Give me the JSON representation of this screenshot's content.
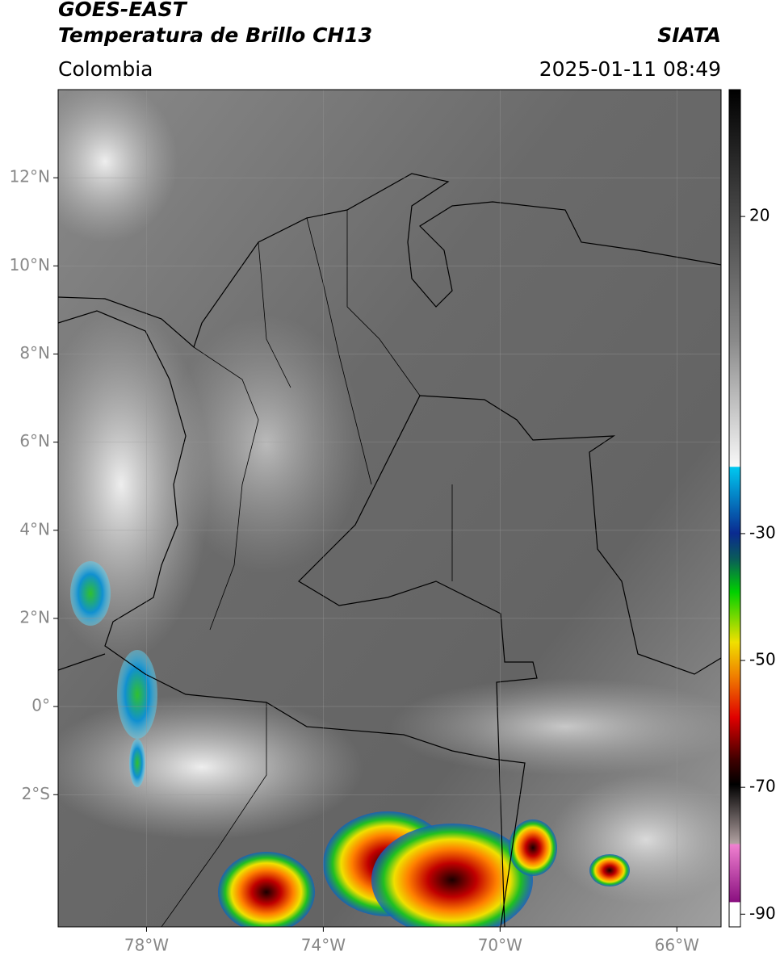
{
  "map": {
    "title": "GOES-EAST",
    "subtitle": "Temperatura de Brillo CH13",
    "source": "SIATA",
    "region": "Colombia",
    "datetime": "2025-01-11 08:49",
    "xlim": [
      -80,
      -65
    ],
    "ylim": [
      -5,
      14
    ],
    "xticks": [
      {
        "value": -78,
        "label": "78°W"
      },
      {
        "value": -74,
        "label": "74°W"
      },
      {
        "value": -70,
        "label": "70°W"
      },
      {
        "value": -66,
        "label": "66°W"
      }
    ],
    "yticks": [
      {
        "value": 12,
        "label": "12°N"
      },
      {
        "value": 10,
        "label": "10°N"
      },
      {
        "value": 8,
        "label": "8°N"
      },
      {
        "value": 6,
        "label": "6°N"
      },
      {
        "value": 4,
        "label": "4°N"
      },
      {
        "value": 2,
        "label": "2°N"
      },
      {
        "value": 0,
        "label": "0°"
      },
      {
        "value": -2,
        "label": "2°S"
      }
    ],
    "grid": true,
    "colorbar": {
      "lim": [
        -92,
        40
      ],
      "ticks": [
        20,
        -30,
        -50,
        -70,
        -90
      ]
    }
  }
}
